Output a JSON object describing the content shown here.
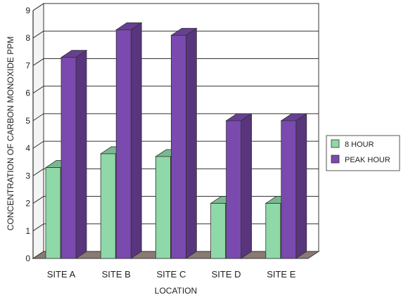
{
  "chart_data": {
    "type": "bar",
    "title": "",
    "xlabel": "LOCATION",
    "ylabel": "CONCENTRATION OF CARBON MONOXIDE PPM",
    "categories": [
      "SITE A",
      "SITE B",
      "SITE C",
      "SITE D",
      "SITE E"
    ],
    "series": [
      {
        "name": "8 HOUR",
        "values": [
          3.3,
          3.8,
          3.7,
          2.0,
          2.0
        ],
        "color": "#8fd8a8"
      },
      {
        "name": "PEAK HOUR",
        "values": [
          7.3,
          8.3,
          8.1,
          5.0,
          5.0
        ],
        "color": "#7a4aae"
      }
    ],
    "ylim": [
      0,
      9
    ],
    "yticks": [
      0,
      1,
      2,
      3,
      4,
      5,
      6,
      7,
      8,
      9
    ],
    "grid": true,
    "legend_position": "right"
  }
}
